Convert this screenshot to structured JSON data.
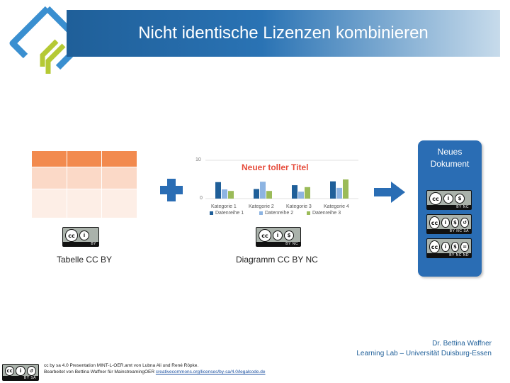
{
  "header": {
    "title": "Nicht identische Lizenzen kombinieren"
  },
  "colors": {
    "header": "#1f5f99",
    "orange": "#f28a4e",
    "series1": "#1f5f99",
    "series2": "#8db4e2",
    "series3": "#9bbb59",
    "doc": "#2a6db4"
  },
  "table_panel": {
    "caption": "Tabelle CC BY",
    "license_badge": {
      "icons": [
        "cc-icon",
        "by-icon"
      ],
      "labels": "BY"
    }
  },
  "chart_panel": {
    "caption": "Diagramm CC BY NC",
    "license_badge": {
      "icons": [
        "cc-icon",
        "by-icon",
        "nc-icon"
      ],
      "labels": "BY NC"
    }
  },
  "plus_icon": "plus-icon",
  "arrow_icon": "arrow-right-icon",
  "chart_data": {
    "type": "bar",
    "title": "Neuer toller Titel",
    "categories": [
      "Kategorie 1",
      "Kategorie 2",
      "Kategorie 3",
      "Kategorie 4"
    ],
    "series": [
      {
        "name": "Datenreihe 1",
        "values": [
          4.3,
          2.5,
          3.5,
          4.5
        ]
      },
      {
        "name": "Datenreihe 2",
        "values": [
          2.4,
          4.4,
          1.8,
          2.8
        ]
      },
      {
        "name": "Datenreihe 3",
        "values": [
          2,
          2,
          3,
          5
        ]
      }
    ],
    "yticks": [
      "10",
      "0"
    ],
    "ylim": [
      0,
      10
    ],
    "legend_position": "bottom"
  },
  "document": {
    "title_line1": "Neues",
    "title_line2": "Dokument",
    "badges": [
      {
        "labels": "BY NC",
        "icons": [
          "cc-icon",
          "by-icon",
          "nc-icon"
        ]
      },
      {
        "labels": "BY NC SA",
        "icons": [
          "cc-icon",
          "by-icon",
          "nc-icon",
          "sa-icon"
        ]
      },
      {
        "labels": "BY NC ND",
        "icons": [
          "cc-icon",
          "by-icon",
          "nc-icon",
          "nd-icon"
        ]
      }
    ]
  },
  "footer": {
    "left_line1": "cc by sa 4.0 Presentation MINT-L-OER.amt von Lubna Ali und René Röpke.",
    "left_line2": "Bearbeitet von Bettina Waffner für MainstreamingOER",
    "left_link": "creativecommons.org/licenses/by-sa/4.0/legalcode.de",
    "license_badge": {
      "labels": "BY SA"
    },
    "right_line1": "Dr. Bettina Waffner",
    "right_line2": "Learning Lab – Universität Duisburg-Essen"
  }
}
